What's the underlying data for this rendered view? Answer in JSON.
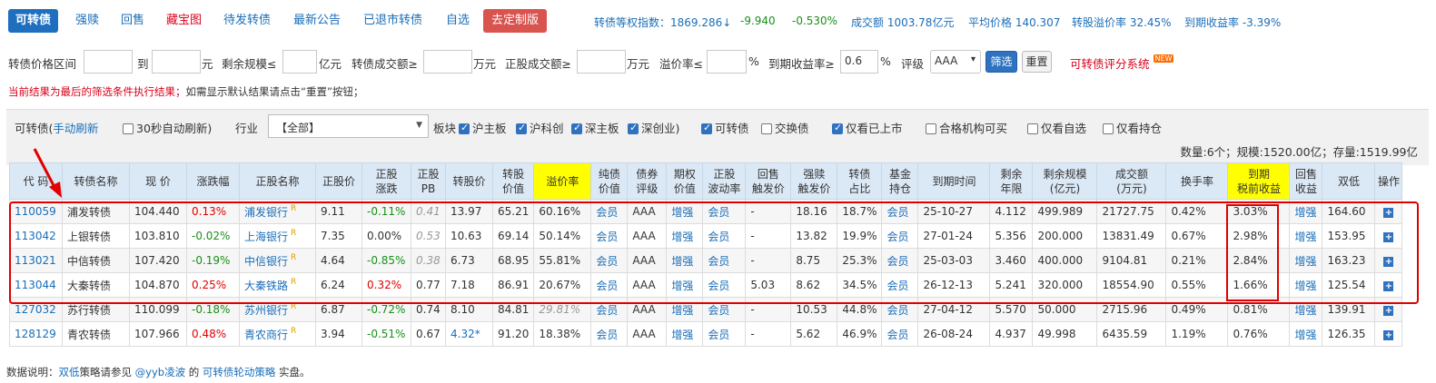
{
  "nav": {
    "tabs": [
      "可转债",
      "强赎",
      "回售",
      "藏宝图",
      "待发转债",
      "最新公告",
      "已退市转债",
      "自选"
    ],
    "custom": "去定制版"
  },
  "stats": {
    "index": "转债等权指数：1869.286↓",
    "change": "-9.940",
    "pct": "-0.530%",
    "turnover": "成交额 1003.78亿元",
    "avg": "平均价格 140.307",
    "premium": "转股溢价率 32.45%",
    "ytm": "到期收益率 -3.39%"
  },
  "filter": {
    "price_range": "转债价格区间",
    "to": "到",
    "yuan": "元",
    "remain": "剩余规模≤",
    "yi": "亿元",
    "cb_turnover": "转债成交额≥",
    "wan1": "万元",
    "stock_turnover": "正股成交额≥",
    "wan2": "万元",
    "premium": "溢价率≤",
    "pct": "%",
    "ytm": "到期收益率≥",
    "ytm_value": "0.6",
    "pct2": "%",
    "rating": "评级",
    "rating_value": "AAA",
    "filter_btn": "筛选",
    "reset_btn": "重置",
    "score_link": "可转债评分系统",
    "new_badge": "NEW"
  },
  "notice": {
    "part1": "当前结果为最后的筛选条件执行结果；",
    "part2": "如需显示默认结果请点击“重置”按钮；"
  },
  "panel": {
    "title": "可转债(",
    "manual_refresh": "手动刷新",
    "auto_refresh": "30秒自动刷新)",
    "industry": "行业",
    "industry_value": "【全部】",
    "board": "板块",
    "sh_main": "沪主板",
    "star": "沪科创",
    "sz_main": "深主板",
    "gem": "深创业)",
    "cb": "可转债",
    "eb": "交换债",
    "listed_only": "仅看已上市",
    "qualified": "合格机构可买",
    "my_select": "仅看自选",
    "my_hold": "仅看持仓",
    "summary": "数量:6个；规模:1520.00亿；存量:1519.99亿"
  },
  "headers": [
    "代 码",
    "转债名称",
    "现 价",
    "涨跌幅",
    "正股名称",
    "正股价",
    "正股\n涨跌",
    "正股\nPB",
    "转股价",
    "转股\n价值",
    "溢价率",
    "纯债\n价值",
    "债券\n评级",
    "期权\n价值",
    "正股\n波动率",
    "回售\n触发价",
    "强赎\n触发价",
    "转债\n占比",
    "基金\n持仓",
    "到期时间",
    "剩余\n年限",
    "剩余规模\n(亿元)",
    "成交额\n(万元)",
    "换手率",
    "到期\n税前收益",
    "回售\n收益",
    "双低",
    "操作"
  ],
  "rows": [
    [
      "110059",
      "浦发转债",
      "104.440",
      "0.13%",
      "浦发银行",
      "9.11",
      "-0.11%",
      "0.41",
      "13.97",
      "65.21",
      "60.16%",
      "会员",
      "AAA",
      "增强",
      "会员",
      "-",
      "18.16",
      "18.7%",
      "会员",
      "25-10-27",
      "4.112",
      "499.989",
      "21727.75",
      "0.42%",
      "3.03%",
      "增强",
      "164.60"
    ],
    [
      "113042",
      "上银转债",
      "103.810",
      "-0.02%",
      "上海银行",
      "7.35",
      "0.00%",
      "0.53",
      "10.63",
      "69.14",
      "50.14%",
      "会员",
      "AAA",
      "增强",
      "会员",
      "-",
      "13.82",
      "19.9%",
      "会员",
      "27-01-24",
      "5.356",
      "200.000",
      "13831.49",
      "0.67%",
      "2.98%",
      "增强",
      "153.95"
    ],
    [
      "113021",
      "中信转债",
      "107.420",
      "-0.19%",
      "中信银行",
      "4.64",
      "-0.85%",
      "0.38",
      "6.73",
      "68.95",
      "55.81%",
      "会员",
      "AAA",
      "增强",
      "会员",
      "-",
      "8.75",
      "25.3%",
      "会员",
      "25-03-03",
      "3.460",
      "400.000",
      "9104.81",
      "0.21%",
      "2.84%",
      "增强",
      "163.23"
    ],
    [
      "113044",
      "大秦转债",
      "104.870",
      "0.25%",
      "大秦铁路",
      "6.24",
      "0.32%",
      "0.77",
      "7.18",
      "86.91",
      "20.67%",
      "会员",
      "AAA",
      "增强",
      "会员",
      "5.03",
      "8.62",
      "34.5%",
      "会员",
      "26-12-13",
      "5.241",
      "320.000",
      "18554.90",
      "0.55%",
      "1.66%",
      "增强",
      "125.54"
    ],
    [
      "127032",
      "苏行转债",
      "110.099",
      "-0.18%",
      "苏州银行",
      "6.87",
      "-0.72%",
      "0.74",
      "8.10",
      "84.81",
      "29.81%",
      "会员",
      "AAA",
      "增强",
      "会员",
      "-",
      "10.53",
      "44.8%",
      "会员",
      "27-04-12",
      "5.570",
      "50.000",
      "2715.96",
      "0.49%",
      "0.81%",
      "增强",
      "139.91"
    ],
    [
      "128129",
      "青农转债",
      "107.966",
      "0.48%",
      "青农商行",
      "3.94",
      "-0.51%",
      "0.67",
      "4.32*",
      "91.20",
      "18.38%",
      "会员",
      "AAA",
      "增强",
      "会员",
      "-",
      "5.62",
      "46.9%",
      "会员",
      "26-08-24",
      "4.937",
      "49.998",
      "6435.59",
      "1.19%",
      "0.76%",
      "增强",
      "126.35"
    ]
  ],
  "r_mark": "R",
  "footer": {
    "label": "数据说明：",
    "link1": "双低",
    "t1": "策略请参见",
    "link2": "@yyb凌波",
    "t2": "的",
    "link3": "可转债轮动策略",
    "t3": "实盘。"
  },
  "colors": {
    "accent": "#1f6fbf",
    "red": "#e00000",
    "green": "#1a8f1a",
    "header_bg": "#dbe8f5",
    "highlight": "#ffff00"
  }
}
